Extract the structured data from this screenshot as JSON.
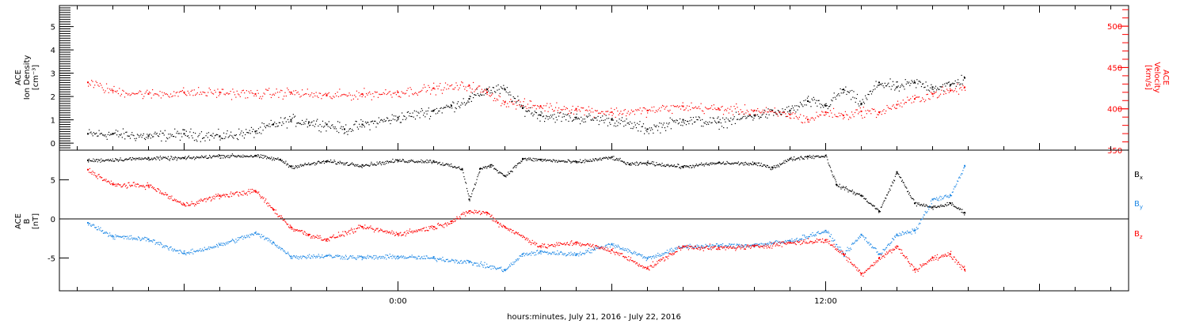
{
  "chart_data": [
    {
      "type": "scatter",
      "panel": "top",
      "ylabel_left": [
        "ACE",
        "Ion Density",
        "[cm⁻³]"
      ],
      "ylabel_right": [
        "ACE",
        "Velocity",
        "[km/s]"
      ],
      "ylim_left": [
        -0.3,
        5.9
      ],
      "yticks_left": [
        0,
        1,
        2,
        3,
        4,
        5
      ],
      "ylim_right": [
        350,
        525
      ],
      "yticks_right": [
        350,
        400,
        450,
        500
      ],
      "series": [
        {
          "name": "ion-density",
          "axis": "left",
          "color": "#000000",
          "x": [
            -8.7,
            -8,
            -7,
            -6,
            -5,
            -4,
            -3.5,
            -3,
            -2.5,
            -2,
            -1.5,
            -1,
            0,
            1,
            1.5,
            2,
            2.5,
            3,
            3.5,
            4,
            5,
            6,
            7,
            8,
            9,
            10,
            11,
            11.5,
            12,
            12.5,
            13,
            13.5,
            14,
            14.5,
            15,
            15.5,
            15.9
          ],
          "y": [
            0.4,
            0.4,
            0.3,
            0.4,
            0.3,
            0.5,
            0.8,
            1.0,
            0.9,
            0.8,
            0.6,
            0.8,
            1.1,
            1.4,
            1.6,
            1.9,
            2.3,
            2.3,
            1.5,
            1.2,
            1.1,
            1.0,
            0.6,
            1.0,
            0.9,
            1.2,
            1.4,
            1.8,
            1.6,
            2.3,
            1.7,
            2.6,
            2.4,
            2.6,
            2.4,
            2.5,
            2.8
          ]
        },
        {
          "name": "velocity",
          "axis": "right",
          "color": "#ff0000",
          "x": [
            -8.7,
            -8,
            -7,
            -6,
            -5,
            -4,
            -3,
            -2,
            -1,
            0,
            1,
            2,
            2.5,
            3,
            4,
            5,
            6,
            7,
            8,
            9,
            10,
            11,
            11.5,
            12,
            12.5,
            13,
            13.5,
            14,
            14.5,
            15,
            15.5,
            15.9
          ],
          "y": [
            432,
            422,
            418,
            420,
            420,
            418,
            420,
            416,
            418,
            420,
            425,
            428,
            420,
            408,
            403,
            400,
            396,
            398,
            403,
            400,
            398,
            393,
            387,
            396,
            392,
            397,
            396,
            405,
            412,
            418,
            422,
            426
          ]
        }
      ]
    },
    {
      "type": "scatter",
      "panel": "bottom",
      "ylabel": [
        "ACE",
        "B",
        "[nT]"
      ],
      "ylim": [
        -9.2,
        8.8
      ],
      "yticks": [
        -5,
        0,
        5
      ],
      "xlabel": "hours:minutes, July 21, 2016 - July 22, 2016",
      "xlim": [
        -9.5,
        20.5
      ],
      "xticks": [
        0,
        12
      ],
      "xtick_labels": [
        "0:00",
        "12:00"
      ],
      "series": [
        {
          "name": "Bx",
          "color": "#000000",
          "x": [
            -8.7,
            -7,
            -6,
            -5,
            -4,
            -3.3,
            -3,
            -2,
            -1,
            0,
            1,
            1.8,
            2,
            2.3,
            2.6,
            3,
            3.5,
            4,
            5,
            6,
            6.5,
            7,
            8,
            9,
            10,
            10.5,
            11,
            11.5,
            12,
            12.3,
            13,
            13.5,
            14,
            14.5,
            15,
            15.5,
            15.9
          ],
          "y": [
            7.5,
            7.8,
            7.8,
            8.1,
            8.1,
            7.6,
            6.7,
            7.4,
            6.9,
            7.5,
            7.4,
            6.4,
            2.5,
            6.4,
            6.9,
            5.5,
            7.7,
            7.6,
            7.3,
            7.9,
            7.0,
            7.2,
            6.7,
            7.2,
            7.1,
            6.6,
            7.7,
            8.0,
            8.1,
            4.4,
            3.0,
            1.0,
            6.0,
            2.0,
            1.5,
            2.0,
            0.8
          ]
        },
        {
          "name": "By",
          "color": "#1e88e5",
          "x": [
            -8.7,
            -8,
            -7,
            -6,
            -5,
            -4,
            -3.5,
            -3,
            -2,
            -1,
            0,
            1,
            2,
            3,
            3.5,
            4,
            5,
            6,
            7,
            8,
            9,
            10,
            11,
            12,
            12.5,
            13,
            13.5,
            14,
            14.5,
            15,
            15.5,
            15.9
          ],
          "y": [
            -0.5,
            -2.2,
            -2.6,
            -4.4,
            -3.3,
            -1.8,
            -3.0,
            -4.8,
            -4.7,
            -4.9,
            -4.8,
            -5.0,
            -5.5,
            -6.5,
            -4.5,
            -4.2,
            -4.5,
            -3.2,
            -5.0,
            -3.5,
            -3.4,
            -3.3,
            -2.8,
            -1.5,
            -4.5,
            -2.0,
            -4.5,
            -2.0,
            -1.5,
            2.5,
            3.0,
            6.8
          ]
        },
        {
          "name": "Bz",
          "color": "#ff0000",
          "x": [
            -8.7,
            -8,
            -7,
            -6,
            -5,
            -4,
            -3.5,
            -3,
            -2.5,
            -2,
            -1,
            0,
            1,
            1.5,
            2,
            2.5,
            2.8,
            3,
            4,
            5,
            6,
            7,
            8,
            9,
            10,
            11,
            12,
            12.5,
            13,
            13.5,
            14,
            14.5,
            15,
            15.5,
            15.9
          ],
          "y": [
            6.3,
            4.4,
            4.3,
            1.8,
            3.0,
            3.6,
            1.2,
            -1.1,
            -2.0,
            -2.6,
            -1.0,
            -1.9,
            -1.0,
            -0.3,
            1.0,
            0.8,
            -0.5,
            -1.0,
            -3.5,
            -3.0,
            -4.0,
            -6.3,
            -3.5,
            -3.7,
            -3.5,
            -3.0,
            -2.7,
            -4.5,
            -7.0,
            -5.0,
            -3.5,
            -6.5,
            -5.0,
            -4.5,
            -6.5
          ]
        }
      ],
      "legend": [
        {
          "main": "B",
          "sub": "x",
          "color": "#000000"
        },
        {
          "main": "B",
          "sub": "y",
          "color": "#1e88e5"
        },
        {
          "main": "B",
          "sub": "z",
          "color": "#ff0000"
        }
      ]
    }
  ]
}
